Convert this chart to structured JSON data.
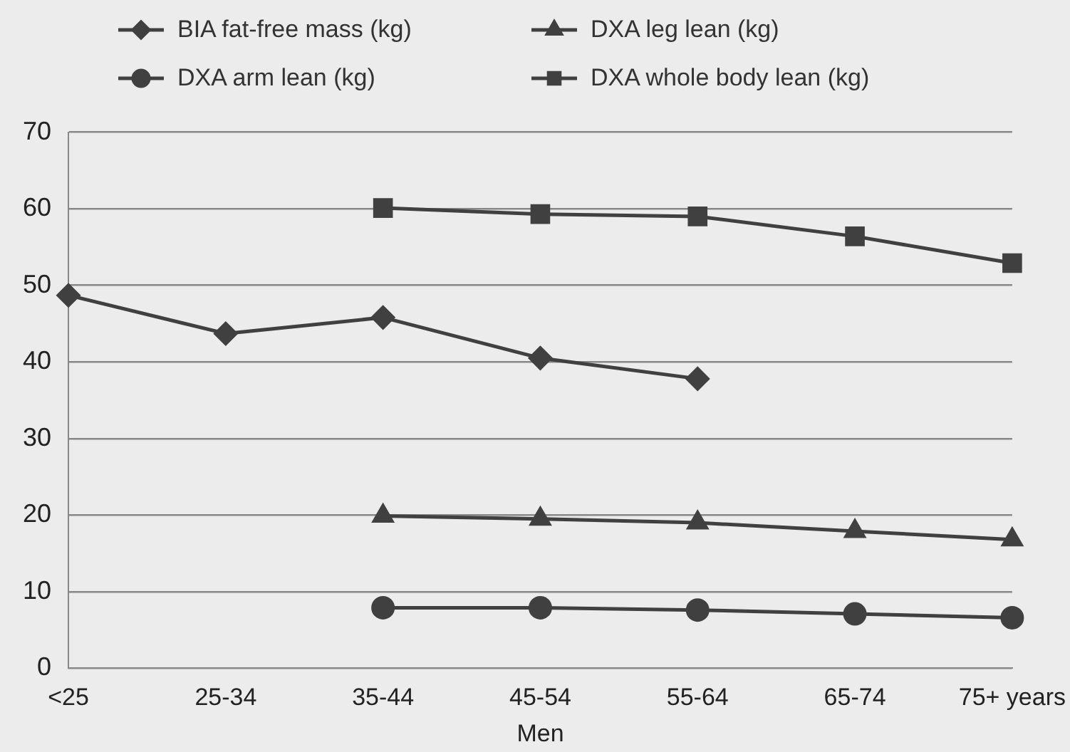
{
  "chart_data": {
    "type": "line",
    "xlabel": "Men",
    "categories": [
      "<25",
      "25-34",
      "35-44",
      "45-54",
      "55-64",
      "65-74",
      "75+ years"
    ],
    "series": [
      {
        "name": "BIA fat-free mass (kg)",
        "color": "#404040",
        "marker": "diamond",
        "values": [
          48.7,
          43.7,
          45.8,
          40.5,
          37.8,
          null,
          null
        ]
      },
      {
        "name": "DXA leg lean (kg)",
        "color": "#404040",
        "marker": "triangle",
        "values": [
          null,
          null,
          19.9,
          19.5,
          19.0,
          17.9,
          16.8
        ]
      },
      {
        "name": "DXA arm lean (kg)",
        "color": "#404040",
        "marker": "circle",
        "values": [
          null,
          null,
          7.9,
          7.9,
          7.6,
          7.1,
          6.6
        ]
      },
      {
        "name": "DXA whole body lean (kg)",
        "color": "#404040",
        "marker": "square",
        "values": [
          null,
          null,
          60.1,
          59.3,
          59.0,
          56.4,
          52.9
        ]
      }
    ],
    "ylim": [
      0,
      70
    ],
    "yticks": [
      0,
      10,
      20,
      30,
      40,
      50,
      60,
      70
    ],
    "grid": "y",
    "legend": "top"
  }
}
